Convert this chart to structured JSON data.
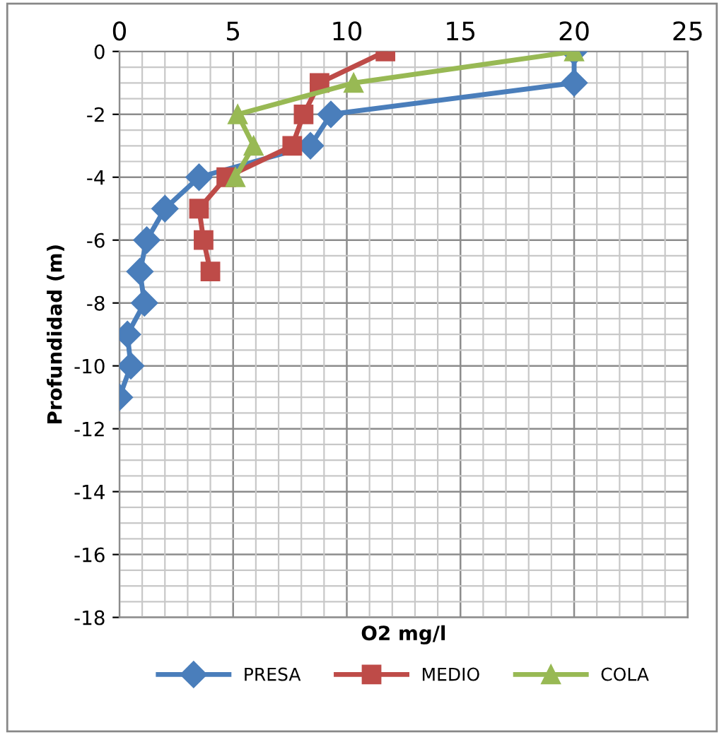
{
  "chart_data": {
    "type": "line",
    "xlabel": "O2 mg/l",
    "ylabel": "Profundidad (m)",
    "xlim": [
      0,
      25
    ],
    "xticks": [
      0,
      5,
      10,
      15,
      20,
      25
    ],
    "ylim": [
      -18,
      0
    ],
    "yticks": [
      -18,
      -16,
      -14,
      -12,
      -10,
      -8,
      -6,
      -4,
      -2,
      0
    ],
    "grid": true,
    "legend": "bottom",
    "line_style": "solid",
    "series": [
      {
        "name": "PRESA",
        "color": "#4a7ebb",
        "marker": "diamond",
        "x": [
          20,
          20,
          9.3,
          8.4,
          3.5,
          2,
          1.2,
          0.9,
          1.1,
          0.35,
          0.5,
          0
        ],
        "values": [
          0,
          -1,
          -2,
          -3,
          -4,
          -5,
          -6,
          -7,
          -8,
          -9,
          -10,
          -11
        ]
      },
      {
        "name": "MEDIO",
        "color": "#be4b48",
        "marker": "square",
        "x": [
          11.7,
          8.8,
          8.1,
          7.6,
          4.7,
          3.5,
          3.7,
          4.0
        ],
        "values": [
          0,
          -1,
          -2,
          -3,
          -4,
          -5,
          -6,
          -7
        ]
      },
      {
        "name": "COLA",
        "color": "#98b954",
        "marker": "triangle",
        "x": [
          20,
          10.3,
          5.2,
          5.9,
          5.1
        ],
        "values": [
          0,
          -1,
          -2,
          -3,
          -4
        ]
      }
    ]
  }
}
